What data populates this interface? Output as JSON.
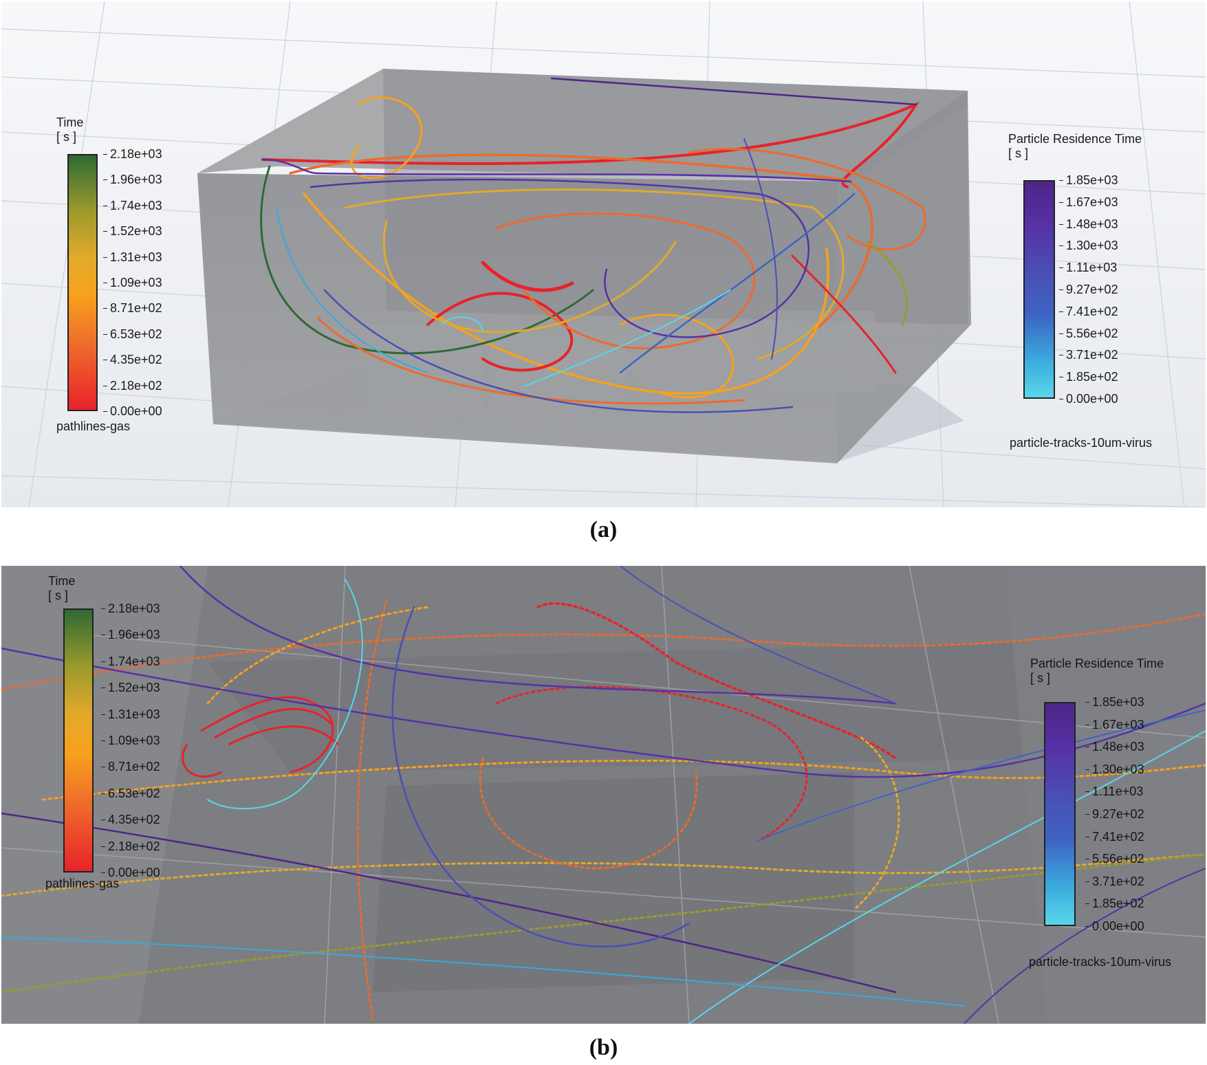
{
  "panel_a": {
    "caption": "(a)",
    "time_legend": {
      "title": "Time",
      "unit": "[ s ]",
      "ticks": [
        "2.18e+03",
        "1.96e+03",
        "1.74e+03",
        "1.52e+03",
        "1.31e+03",
        "1.09e+03",
        "8.71e+02",
        "6.53e+02",
        "4.35e+02",
        "2.18e+02",
        "0.00e+00"
      ],
      "name": "pathlines-gas"
    },
    "residence_legend": {
      "title": "Particle Residence Time",
      "unit": "[ s ]",
      "ticks": [
        "1.85e+03",
        "1.67e+03",
        "1.48e+03",
        "1.30e+03",
        "1.11e+03",
        "9.27e+02",
        "7.41e+02",
        "5.56e+02",
        "3.71e+02",
        "1.85e+02",
        "0.00e+00"
      ],
      "name": "particle-tracks-10um-virus"
    }
  },
  "panel_b": {
    "caption": "(b)",
    "time_legend": {
      "title": "Time",
      "unit": "[ s ]",
      "ticks": [
        "2.18e+03",
        "1.96e+03",
        "1.74e+03",
        "1.52e+03",
        "1.31e+03",
        "1.09e+03",
        "8.71e+02",
        "6.53e+02",
        "4.35e+02",
        "2.18e+02",
        "0.00e+00"
      ],
      "name": "pathlines-gas"
    },
    "residence_legend": {
      "title": "Particle Residence Time",
      "unit": "[ s ]",
      "ticks": [
        "1.85e+03",
        "1.67e+03",
        "1.48e+03",
        "1.30e+03",
        "1.11e+03",
        "9.27e+02",
        "7.41e+02",
        "5.56e+02",
        "3.71e+02",
        "1.85e+02",
        "0.00e+00"
      ],
      "name": "particle-tracks-10um-virus"
    }
  },
  "colors": {
    "time_scale": [
      "#e8222a",
      "#f7a11c",
      "#2e6a33"
    ],
    "residence_scale": [
      "#58d7ea",
      "#4a4fb4",
      "#4f2588"
    ]
  }
}
